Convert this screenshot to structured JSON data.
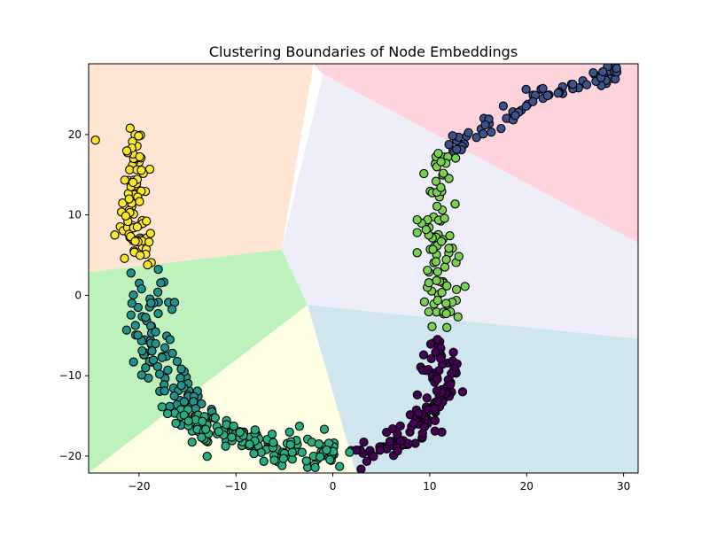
{
  "chart_data": {
    "type": "scatter",
    "title": "Clustering Boundaries of Node Embeddings",
    "xlabel": "",
    "ylabel": "",
    "xlim": [
      -25.2,
      31.5
    ],
    "ylim": [
      -22.1,
      28.8
    ],
    "xticks": [
      -20,
      -10,
      0,
      10,
      20,
      30
    ],
    "yticks": [
      -20,
      -10,
      0,
      10,
      20
    ],
    "xtick_labels": [
      "−20",
      "−10",
      "0",
      "10",
      "20",
      "30"
    ],
    "ytick_labels": [
      "−20",
      "−10",
      "0",
      "10",
      "20"
    ],
    "grid": false,
    "legend": "none",
    "regions": [
      {
        "color": "#ffe5d4",
        "polygon": [
          [
            -25.2,
            28.8
          ],
          [
            -2.0,
            28.8
          ],
          [
            -5.3,
            5.7
          ],
          [
            -25.2,
            2.9
          ]
        ]
      },
      {
        "color": "#ffd4dd",
        "polygon": [
          [
            -2.0,
            28.8
          ],
          [
            31.5,
            28.8
          ],
          [
            31.5,
            6.5
          ],
          [
            -1.0,
            27.5
          ]
        ]
      },
      {
        "color": "#eeeefa",
        "polygon": [
          [
            -1.0,
            27.5
          ],
          [
            31.5,
            6.5
          ],
          [
            31.5,
            -5.4
          ],
          [
            -2.6,
            -1.2
          ],
          [
            -5.3,
            5.7
          ]
        ]
      },
      {
        "color": "#bdf2bd",
        "polygon": [
          [
            -25.2,
            2.9
          ],
          [
            -5.3,
            5.7
          ],
          [
            -2.6,
            -1.2
          ],
          [
            -25.2,
            -22.1
          ]
        ]
      },
      {
        "color": "#ffffe6",
        "polygon": [
          [
            -25.2,
            -22.1
          ],
          [
            -2.6,
            -1.2
          ],
          [
            2.4,
            -22.1
          ]
        ]
      },
      {
        "color": "#cfe6ee",
        "polygon": [
          [
            -2.6,
            -1.2
          ],
          [
            31.5,
            -5.4
          ],
          [
            31.5,
            -22.1
          ],
          [
            2.4,
            -22.1
          ]
        ]
      }
    ],
    "series": [
      {
        "color": "#440154",
        "center": [
          [
            2,
            -19.5
          ],
          [
            5,
            -18.8
          ],
          [
            8,
            -17.5
          ],
          [
            10,
            -15
          ],
          [
            11,
            -12
          ],
          [
            11.2,
            -9
          ],
          [
            11,
            -6.5
          ]
        ],
        "spread": 1.0,
        "count": 130
      },
      {
        "color": "#3b528b",
        "center": [
          [
            12,
            18
          ],
          [
            16,
            21
          ],
          [
            20,
            23.5
          ],
          [
            24,
            25.5
          ],
          [
            27,
            26.8
          ],
          [
            30,
            28
          ]
        ],
        "spread": 0.55,
        "count": 70
      },
      {
        "color": "#21918c",
        "center": [
          [
            -19,
            2
          ],
          [
            -19,
            -3
          ],
          [
            -18.5,
            -7
          ],
          [
            -17,
            -10
          ],
          [
            -15,
            -13
          ],
          [
            -13,
            -15
          ]
        ],
        "spread": 1.0,
        "count": 100
      },
      {
        "color": "#27ad81",
        "center": [
          [
            -16,
            -15
          ],
          [
            -12,
            -17
          ],
          [
            -8,
            -18.5
          ],
          [
            -4,
            -19.5
          ],
          [
            0,
            -19.8
          ]
        ],
        "spread": 1.0,
        "count": 150
      },
      {
        "color": "#7ad151",
        "center": [
          [
            11.5,
            17.5
          ],
          [
            11,
            14
          ],
          [
            10.5,
            10
          ],
          [
            10.5,
            6.5
          ],
          [
            11,
            3
          ],
          [
            11.5,
            -0.5
          ],
          [
            11,
            -3
          ]
        ],
        "spread": 0.9,
        "count": 90
      },
      {
        "color": "#fde725",
        "center": [
          [
            -20.8,
            20
          ],
          [
            -20.5,
            16
          ],
          [
            -20.5,
            12
          ],
          [
            -20.3,
            8
          ],
          [
            -20,
            5
          ]
        ],
        "spread": 0.7,
        "count": 80
      }
    ],
    "outliers": [
      {
        "color": "#fde725",
        "x": -24.5,
        "y": 19.3
      },
      {
        "color": "#fde725",
        "x": -22.5,
        "y": 7.5
      },
      {
        "color": "#fde725",
        "x": -21.5,
        "y": 4.6
      },
      {
        "color": "#7ad151",
        "x": 8.7,
        "y": 5.3
      },
      {
        "color": "#7ad151",
        "x": 8.7,
        "y": 7.8
      },
      {
        "color": "#7ad151",
        "x": 8.7,
        "y": 9.4
      }
    ]
  }
}
